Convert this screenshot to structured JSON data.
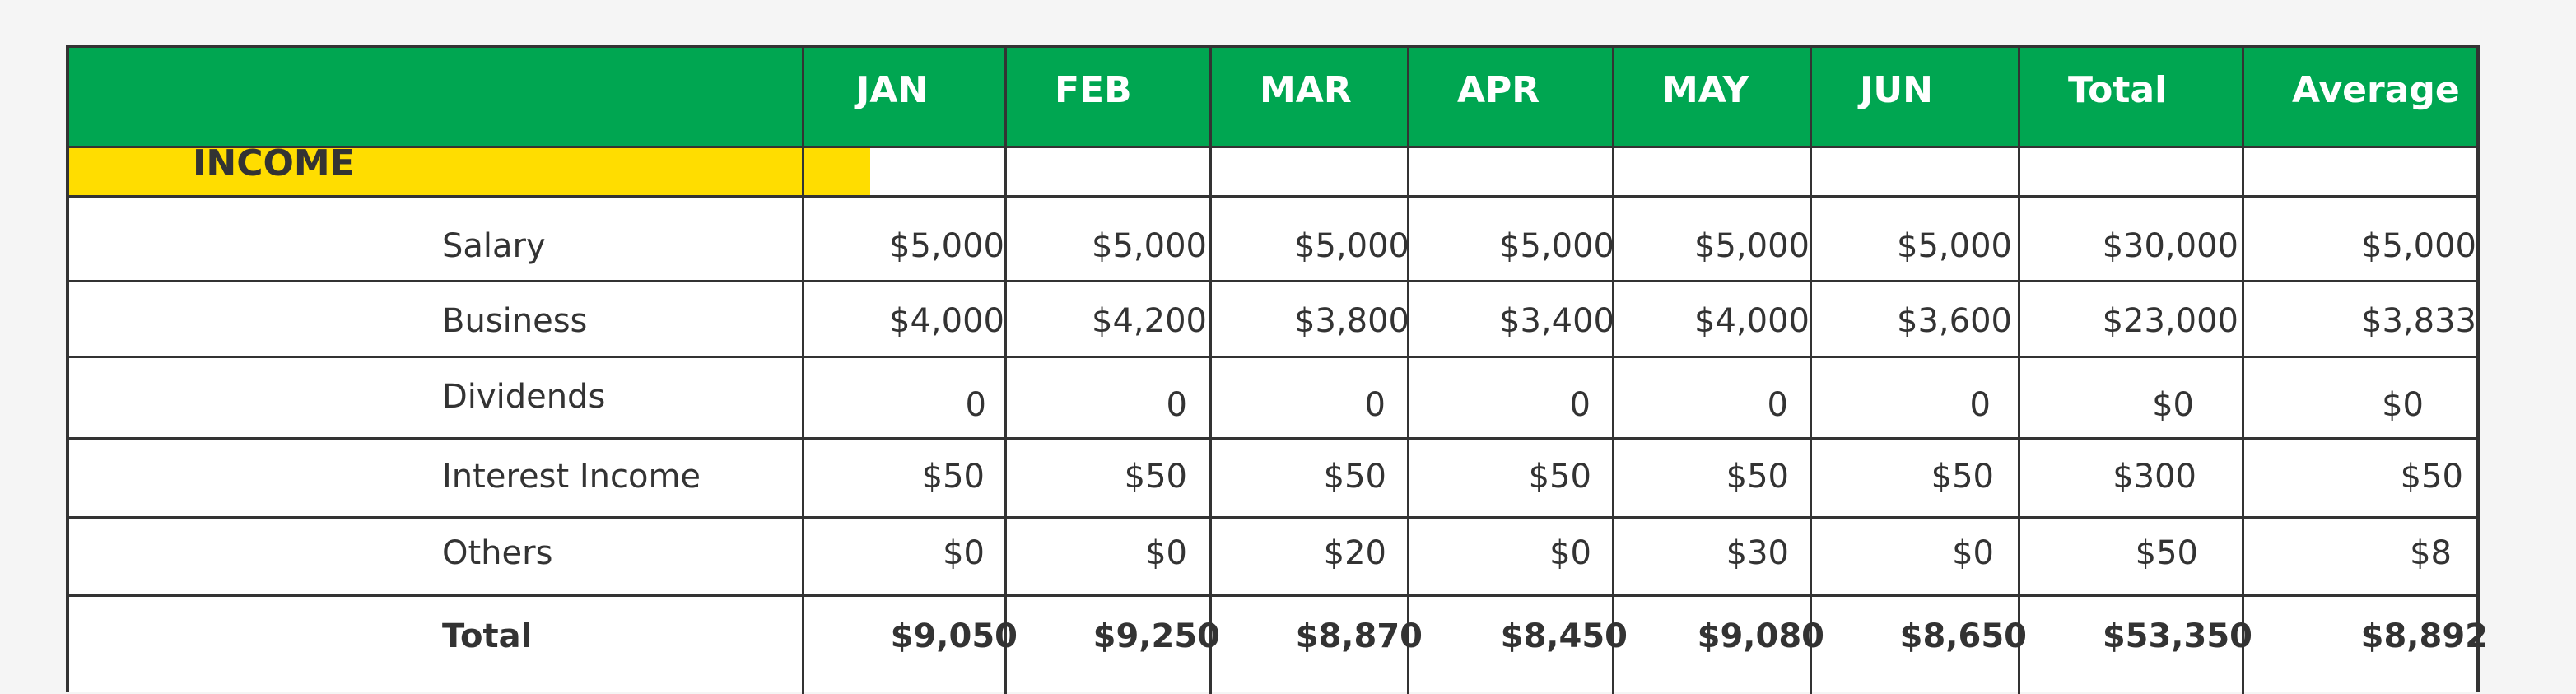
{
  "table": {
    "columns": [
      "JAN",
      "FEB",
      "MAR",
      "APR",
      "MAY",
      "JUN",
      "Total",
      "Average"
    ],
    "section_label": "INCOME",
    "rows": [
      {
        "label": "Salary",
        "values": [
          "$5,000",
          "$5,000",
          "$5,000",
          "$5,000",
          "$5,000",
          "$5,000",
          "$30,000",
          "$5,000"
        ]
      },
      {
        "label": "Business",
        "values": [
          "$4,000",
          "$4,200",
          "$3,800",
          "$3,400",
          "$4,000",
          "$3,600",
          "$23,000",
          "$3,833"
        ]
      },
      {
        "label": "Dividends",
        "values": [
          "0",
          "0",
          "0",
          "0",
          "0",
          "0",
          "$0",
          "$0"
        ]
      },
      {
        "label": "Interest Income",
        "values": [
          "$50",
          "$50",
          "$50",
          "$50",
          "$50",
          "$50",
          "$300",
          "$50"
        ]
      },
      {
        "label": "Others",
        "values": [
          "$0",
          "$0",
          "$20",
          "$0",
          "$30",
          "$0",
          "$50",
          "$8"
        ]
      }
    ],
    "total": {
      "label": "Total",
      "values": [
        "$9,050",
        "$9,250",
        "$8,870",
        "$8,450",
        "$9,080",
        "$8,650",
        "$53,350",
        "$8,892"
      ]
    }
  },
  "colors": {
    "header_bg": "#00A651",
    "section_bg": "#FFDD00",
    "grid": "#333333"
  }
}
